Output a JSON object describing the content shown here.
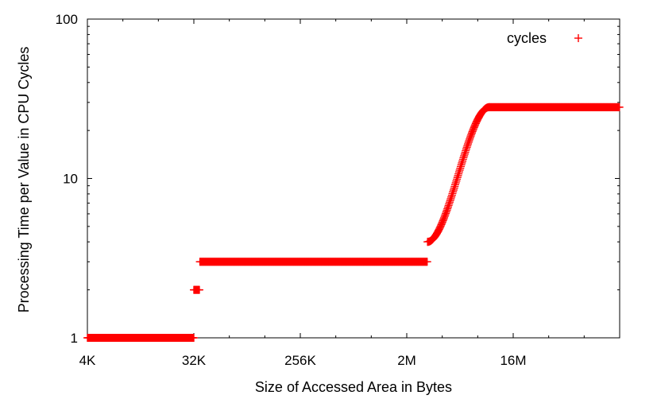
{
  "chart_data": {
    "type": "scatter",
    "title": "",
    "xlabel": "Size of Accessed Area in Bytes",
    "ylabel": "Processing Time per Value in CPU Cycles",
    "x_scale": "log2",
    "y_scale": "log10",
    "xlim": [
      "4K",
      "128M"
    ],
    "ylim": [
      1,
      100
    ],
    "x_ticks": [
      {
        "label": "4K",
        "bytes": "4K"
      },
      {
        "label": "32K",
        "bytes": "32K"
      },
      {
        "label": "256K",
        "bytes": "256K"
      },
      {
        "label": "2M",
        "bytes": "2M"
      },
      {
        "label": "16M",
        "bytes": "16M"
      }
    ],
    "y_ticks": [
      {
        "label": "1",
        "value": 1
      },
      {
        "label": "10",
        "value": 10
      },
      {
        "label": "100",
        "value": 100
      }
    ],
    "grid": false,
    "legend_position": "top-right",
    "color": "#ff0000",
    "marker": "plus",
    "series": [
      {
        "name": "cycles",
        "segments": [
          {
            "from": "4K",
            "to": "32K",
            "value": 1
          },
          {
            "from": "32K",
            "to": "36K",
            "value": 2
          },
          {
            "from": "36K",
            "to": "3M",
            "value": 3
          },
          {
            "from": "3M",
            "to": "10M",
            "rising_from": 4,
            "rising_to": 28
          },
          {
            "from": "10M",
            "to": "128M",
            "value": 28
          }
        ]
      }
    ]
  }
}
